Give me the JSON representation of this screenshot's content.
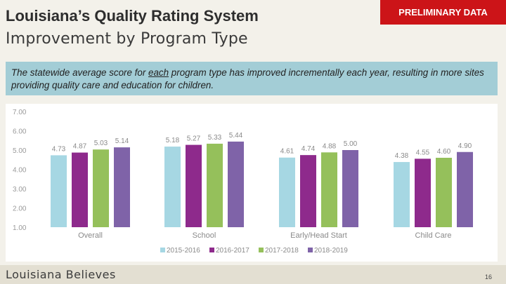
{
  "header": {
    "title": "Louisiana’s Quality Rating System",
    "subtitle": "Improvement by Program Type",
    "badge": "PRELIMINARY DATA"
  },
  "callout": {
    "text_before": "The statewide average score for ",
    "text_emphasis": "each",
    "text_after": " program type has improved incrementally each year, resulting in more sites providing quality care and education for children."
  },
  "footer": {
    "logo_text": "Louisiana Believes",
    "page_number": "16"
  },
  "chart_data": {
    "type": "bar",
    "categories": [
      "Overall",
      "School",
      "Early/Head Start",
      "Child Care"
    ],
    "series": [
      {
        "name": "2015-2016",
        "color": "#a6d7e3",
        "values": [
          4.73,
          5.18,
          4.61,
          4.38
        ]
      },
      {
        "name": "2016-2017",
        "color": "#8e2a8c",
        "values": [
          4.87,
          5.27,
          4.74,
          4.55
        ]
      },
      {
        "name": "2017-2018",
        "color": "#95c05b",
        "values": [
          5.03,
          5.33,
          4.88,
          4.6
        ]
      },
      {
        "name": "2018-2019",
        "color": "#7f63a8",
        "values": [
          5.14,
          5.44,
          5.0,
          4.9
        ]
      }
    ],
    "value_labels": [
      [
        "4.73",
        "5.18",
        "4.61",
        "4.38"
      ],
      [
        "4.87",
        "5.27",
        "4.74",
        "4.55"
      ],
      [
        "5.03",
        "5.33",
        "4.88",
        "4.60"
      ],
      [
        "5.14",
        "5.44",
        "5.00",
        "4.90"
      ]
    ],
    "y_ticks": [
      "7.00",
      "6.00",
      "5.00",
      "4.00",
      "3.00",
      "2.00",
      "1.00"
    ],
    "ylim": [
      1,
      7
    ],
    "grid": false,
    "legend_position": "bottom"
  }
}
